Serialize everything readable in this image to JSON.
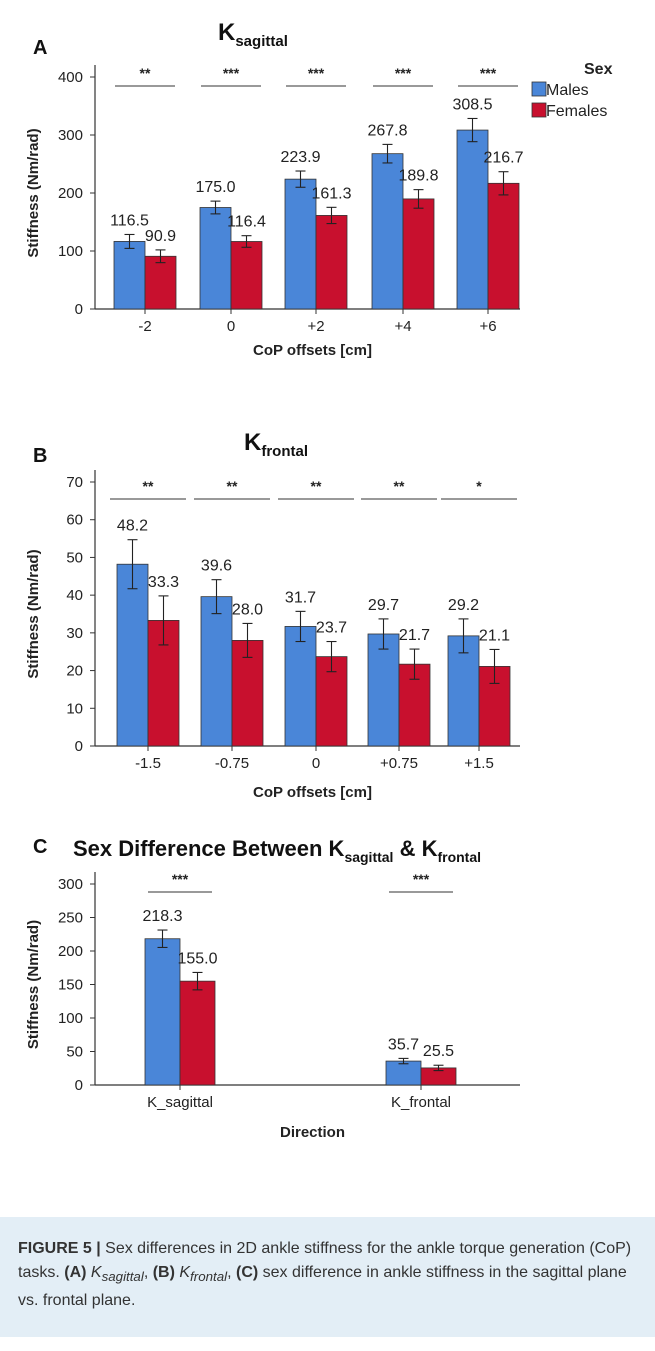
{
  "colors": {
    "males": "#4a86d8",
    "females": "#c8102e",
    "caption_bg": "#e3eef6"
  },
  "legend": {
    "title": "Sex",
    "items": [
      "Males",
      "Females"
    ]
  },
  "chart_data": [
    {
      "panel": "A",
      "type": "bar",
      "title_main": "K",
      "title_sub": "sagittal",
      "xlabel": "CoP offsets [cm]",
      "ylabel": "Stiffness (Nm/rad)",
      "ylim": [
        0,
        400
      ],
      "yticks": [
        "0",
        "100",
        "200",
        "300",
        "400"
      ],
      "categories": [
        "-2",
        "0",
        "+2",
        "+4",
        "+6"
      ],
      "series": [
        {
          "name": "Males",
          "values": [
            116.5,
            175.0,
            223.9,
            267.8,
            308.5
          ],
          "errors": [
            12,
            11,
            14,
            16,
            20
          ],
          "labels": [
            "116.5",
            "175.0",
            "223.9",
            "267.8",
            "308.5"
          ]
        },
        {
          "name": "Females",
          "values": [
            90.9,
            116.4,
            161.3,
            189.8,
            216.7
          ],
          "errors": [
            11,
            10,
            14,
            16,
            20
          ],
          "labels": [
            "90.9",
            "116.4",
            "161.3",
            "189.8",
            "216.7"
          ]
        }
      ],
      "significance": [
        "**",
        "***",
        "***",
        "***",
        "***"
      ]
    },
    {
      "panel": "B",
      "type": "bar",
      "title_main": "K",
      "title_sub": "frontal",
      "xlabel": "CoP offsets [cm]",
      "ylabel": "Stiffness (Nm/rad)",
      "ylim": [
        0,
        70
      ],
      "yticks": [
        "0",
        "10",
        "20",
        "30",
        "40",
        "50",
        "60",
        "70"
      ],
      "categories": [
        "-1.5",
        "-0.75",
        "0",
        "+0.75",
        "+1.5"
      ],
      "series": [
        {
          "name": "Males",
          "values": [
            48.2,
            39.6,
            31.7,
            29.7,
            29.2
          ],
          "errors": [
            6.5,
            4.5,
            4.0,
            4.0,
            4.5
          ],
          "labels": [
            "48.2",
            "39.6",
            "31.7",
            "29.7",
            "29.2"
          ]
        },
        {
          "name": "Females",
          "values": [
            33.3,
            28.0,
            23.7,
            21.7,
            21.1
          ],
          "errors": [
            6.5,
            4.5,
            4.0,
            4.0,
            4.5
          ],
          "labels": [
            "33.3",
            "28.0",
            "23.7",
            "21.7",
            "21.1"
          ]
        }
      ],
      "significance": [
        "**",
        "**",
        "**",
        "**",
        "*"
      ]
    },
    {
      "panel": "C",
      "type": "bar",
      "title_main": "Sex Difference Between K",
      "title_sub": "sagittal",
      "title_mid": " & K",
      "title_sub2": "frontal",
      "xlabel": "Direction",
      "ylabel": "Stiffness (Nm/rad)",
      "ylim": [
        0,
        300
      ],
      "yticks": [
        "0",
        "50",
        "100",
        "150",
        "200",
        "250",
        "300"
      ],
      "categories": [
        "K_sagittal",
        "K_frontal"
      ],
      "series": [
        {
          "name": "Males",
          "values": [
            218.3,
            35.7
          ],
          "errors": [
            13,
            4
          ],
          "labels": [
            "218.3",
            "35.7"
          ]
        },
        {
          "name": "Females",
          "values": [
            155.0,
            25.5
          ],
          "errors": [
            13,
            4
          ],
          "labels": [
            "155.0",
            "25.5"
          ]
        }
      ],
      "significance": [
        "***",
        "***"
      ]
    }
  ],
  "caption": {
    "label": "FIGURE 5 |",
    "text": " Sex differences in 2D ankle stiffness for the ankle torque generation (CoP) tasks. ",
    "a_label": "(A)",
    "a_main": " K",
    "a_sub": "sagittal",
    "sep1": ", ",
    "b_label": "(B)",
    "b_main": " K",
    "b_sub": "frontal",
    "sep2": ", ",
    "c_label": "(C)",
    "c_text": " sex difference in ankle stiffness in the sagittal plane vs. frontal plane."
  }
}
